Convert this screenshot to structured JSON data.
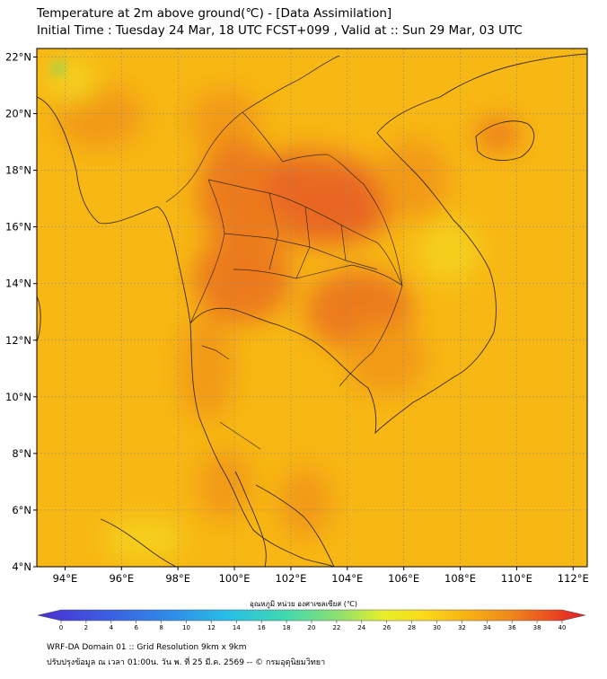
{
  "header": {
    "title": "Temperature at 2m above ground(℃) - [Data Assimilation]",
    "subtitle": "Initial Time : Tuesday 24 Mar, 18 UTC FCST+099 , Valid at :: Sun 29 Mar, 03 UTC"
  },
  "map": {
    "lat_labels": [
      "22°N",
      "20°N",
      "18°N",
      "16°N",
      "14°N",
      "12°N",
      "10°N",
      "8°N",
      "6°N",
      "4°N"
    ],
    "lon_labels": [
      "94°E",
      "96°E",
      "98°E",
      "100°E",
      "102°E",
      "104°E",
      "106°E",
      "108°E",
      "110°E",
      "112°E"
    ],
    "lat_range": [
      4,
      22.3
    ],
    "lon_range": [
      93,
      112.5
    ],
    "colors": {
      "background": "#f7b714",
      "warm": "#f29a18",
      "hot": "#ec7a1f",
      "hottest": "#e86622",
      "cool_yellow": "#f5cf1c",
      "green_spot": "#9fd24b",
      "border": "#3a2a10",
      "grid": "#8a8a8a"
    }
  },
  "colorbar": {
    "label": "อุณหภูมิ หน่วย องศาเซลเซียส (℃)",
    "ticks": [
      "0",
      "2",
      "4",
      "6",
      "8",
      "10",
      "12",
      "14",
      "16",
      "18",
      "20",
      "22",
      "24",
      "26",
      "28",
      "30",
      "32",
      "34",
      "36",
      "38",
      "40"
    ]
  },
  "footer": {
    "line1": "WRF-DA Domain 01 :: Grid Resolution 9km x 9km",
    "line2": "ปรับปรุงข้อมูล ณ เวลา 01:00น. วัน พ. ที่ 25 มี.ค. 2569 -- © กรมอุตุนิยมวิทยา"
  }
}
